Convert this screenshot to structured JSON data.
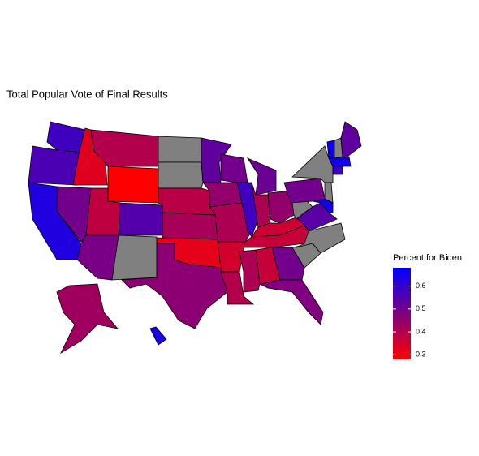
{
  "map": {
    "title": "Total Popular Vote of Final Results",
    "legend": {
      "title": "Percent for Biden",
      "ticks": [
        0.3,
        0.4,
        0.5,
        0.6
      ],
      "limits": [
        0.28,
        0.68
      ],
      "low_color": "#ff0000",
      "high_color": "#0000ff",
      "na_color": "#808080"
    },
    "values": [
      0.58,
      0.56,
      0.63,
      0.33,
      0.5,
      0.4,
      0.27,
      0.38,
      0.55,
      0.49,
      null,
      null,
      null,
      0.39,
      0.42,
      0.32,
      0.46,
      0.53,
      0.45,
      0.41,
      0.35,
      0.4,
      0.5,
      0.58,
      0.51,
      0.41,
      0.45,
      0.36,
      0.37,
      0.41,
      0.37,
      0.5,
      0.48,
      null,
      null,
      0.54,
      null,
      0.5,
      null,
      null,
      0.65,
      0.59,
      0.65,
      0.66,
      null,
      0.53,
      0.43,
      0.64
    ]
  }
}
